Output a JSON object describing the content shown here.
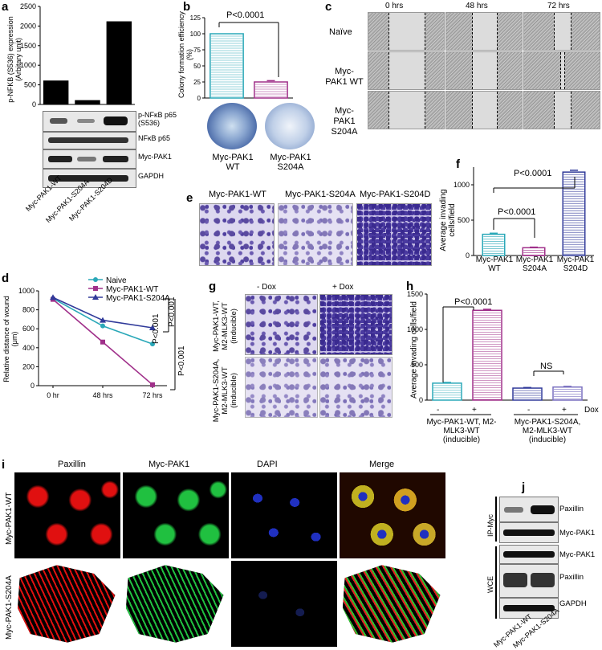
{
  "panels": {
    "a": {
      "letter": "a",
      "ylabel": "p-NFKB (S536) expression (Arbitary unit)",
      "blots": [
        "p-NFκB p65 (S536)",
        "NFκB p65",
        "Myc-PAK1",
        "GAPDH"
      ],
      "lanes": [
        "Myc-PAK1-WT",
        "Myc-PAK1-S204A",
        "Myc-PAK1-S204D"
      ]
    },
    "b": {
      "letter": "b",
      "ylabel": "Colony formation efficiency (%)",
      "pvalue": "P<0.0001",
      "groups": [
        "Myc-PAK1 WT",
        "Myc-PAK1 S204A"
      ]
    },
    "c": {
      "letter": "c",
      "times": [
        "0 hrs",
        "48 hrs",
        "72 hrs"
      ],
      "rows": [
        "Naïve",
        "Myc-PAK1 WT",
        "Myc-PAK1 S204A"
      ]
    },
    "d": {
      "letter": "d",
      "ylabel": "Relative distance of wound (μm)",
      "p1": "P<0.001",
      "p2": "P<0.001",
      "p3": "P<0.001"
    },
    "e": {
      "letter": "e",
      "cols": [
        "Myc-PAK1-WT",
        "Myc-PAK1-S204A",
        "Myc-PAK1-S204D"
      ]
    },
    "f": {
      "letter": "f",
      "ylabel": "Average invading cells/field",
      "p1": "P<0.0001",
      "p2": "P<0.0001",
      "groups": [
        "Myc-PAK1 WT",
        "Myc-PAK1 S204A",
        "Myc-PAK1 S204D"
      ]
    },
    "g": {
      "letter": "g",
      "cols": [
        "- Dox",
        "+ Dox"
      ],
      "rows": [
        "Myc-PAK1-WT, M2-MLK3-WT (inducible)",
        "Myc-PAK1-S204A, M2-MLK3-WT (inducible)"
      ]
    },
    "h": {
      "letter": "h",
      "ylabel": "Average invading cells/field",
      "p1": "P<0.0001",
      "p2": "NS",
      "dox_label": "Dox",
      "dox_marks": [
        "-",
        "+",
        "-",
        "+"
      ],
      "groups": [
        "Myc-PAK1-WT, M2-MLK3-WT (inducible)",
        "Myc-PAK1-S204A, M2-MLK3-WT (inducible)"
      ]
    },
    "i": {
      "letter": "i",
      "cols": [
        "Paxillin",
        "Myc-PAK1",
        "DAPI",
        "Merge"
      ],
      "rows": [
        "Myc-PAK1-WT",
        "Myc-PAK1-S204A"
      ],
      "colors": {
        "Paxillin": "#e01010",
        "Myc-PAK1": "#20c040",
        "DAPI": "#2030c0",
        "Merge": "#c0b020"
      }
    },
    "j": {
      "letter": "j",
      "groups": [
        "IP-Myc",
        "WCE"
      ],
      "blots": [
        "Paxillin",
        "Myc-PAK1",
        "Myc-PAK1",
        "Paxillin",
        "GAPDH"
      ],
      "lanes": [
        "Myc-PAK1-WT",
        "Myc-PAK1-S204A"
      ]
    }
  },
  "chart_data": [
    {
      "id": "a",
      "type": "bar",
      "categories": [
        "Myc-PAK1-WT",
        "Myc-PAK1-S204A",
        "Myc-PAK1-S204D"
      ],
      "values": [
        610,
        110,
        2120
      ],
      "ylim": [
        0,
        2500
      ],
      "yticks": [
        0,
        500,
        1000,
        1500,
        2000,
        2500
      ],
      "ylabel": "p-NFKB (S536) expression (Arbitary unit)",
      "color": "#000000"
    },
    {
      "id": "b",
      "type": "bar",
      "categories": [
        "Myc-PAK1 WT",
        "Myc-PAK1 S204A"
      ],
      "values": [
        100,
        25
      ],
      "errors": [
        0,
        2
      ],
      "ylim": [
        0,
        125
      ],
      "yticks": [
        0,
        25,
        50,
        75,
        100,
        125
      ],
      "ylabel": "Colony formation efficiency (%)",
      "colors": [
        "#2aa8b8",
        "#a0308a"
      ]
    },
    {
      "id": "d",
      "type": "line",
      "x": [
        "0 hr",
        "48 hrs",
        "72 hrs"
      ],
      "ylim": [
        0,
        1000
      ],
      "yticks": [
        0,
        200,
        400,
        600,
        800,
        1000
      ],
      "ylabel": "Relative distance of wound (μm)",
      "series": [
        {
          "name": "Naive",
          "values": [
            920,
            630,
            440
          ],
          "color": "#2aa8b8",
          "marker": "circle"
        },
        {
          "name": "Myc-PAK1-WT",
          "values": [
            910,
            460,
            10
          ],
          "color": "#a0308a",
          "marker": "square"
        },
        {
          "name": "Myc-PAK1-S204A",
          "values": [
            930,
            690,
            610
          ],
          "color": "#303a9a",
          "marker": "triangle"
        }
      ],
      "legend": "top-right"
    },
    {
      "id": "f",
      "type": "bar",
      "categories": [
        "Myc-PAK1 WT",
        "Myc-PAK1 S204A",
        "Myc-PAK1 S204D"
      ],
      "values": [
        300,
        110,
        1180
      ],
      "errors": [
        15,
        8,
        25
      ],
      "ylim": [
        0,
        1250
      ],
      "yticks": [
        0,
        500,
        1000
      ],
      "ylabel": "Average invading cells/field",
      "colors": [
        "#2aa8b8",
        "#a0308a",
        "#303a9a"
      ]
    },
    {
      "id": "h",
      "type": "bar",
      "categories": [
        "-",
        "+",
        "-",
        "+"
      ],
      "values": [
        240,
        1270,
        170,
        185
      ],
      "errors": [
        10,
        15,
        8,
        10
      ],
      "ylim": [
        0,
        1500
      ],
      "yticks": [
        0,
        500,
        1000,
        1500
      ],
      "ylabel": "Average invading cells/field",
      "colors": [
        "#2aa8b8",
        "#a0308a",
        "#303a9a",
        "#7a70c0"
      ]
    }
  ]
}
